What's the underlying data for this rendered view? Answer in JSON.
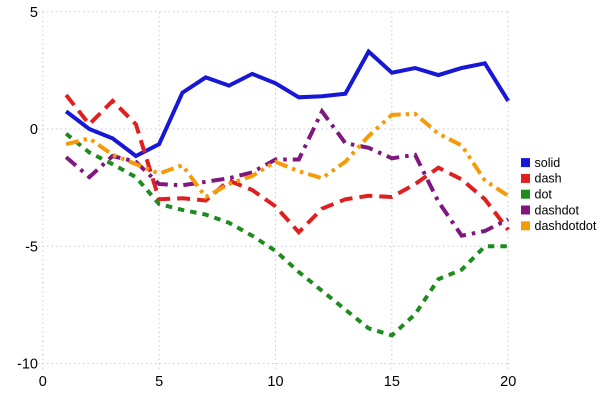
{
  "chart_data": {
    "type": "line",
    "title": "",
    "xlabel": "",
    "ylabel": "",
    "xlim": [
      0,
      20
    ],
    "ylim": [
      -10,
      5
    ],
    "xticks": [
      "0",
      "5",
      "10",
      "15",
      "20"
    ],
    "xtick_values": [
      0,
      5,
      10,
      15,
      20
    ],
    "yticks": [
      "5",
      "0",
      "-5",
      "-10"
    ],
    "ytick_values": [
      5,
      0,
      -5,
      -10
    ],
    "grid": "dotted",
    "legend_position": "right",
    "x": [
      1,
      2,
      3,
      4,
      5,
      6,
      7,
      8,
      9,
      10,
      11,
      12,
      13,
      14,
      15,
      16,
      17,
      18,
      19,
      20
    ],
    "series": [
      {
        "name": "solid",
        "style": "solid",
        "color": "#1717d6",
        "values": [
          0.75,
          0.0,
          -0.4,
          -1.15,
          -0.65,
          1.55,
          2.2,
          1.85,
          2.35,
          1.95,
          1.35,
          1.4,
          1.5,
          3.3,
          2.4,
          2.6,
          2.3,
          2.6,
          2.8,
          1.2
        ]
      },
      {
        "name": "dash",
        "style": "dash",
        "color": "#df2020",
        "values": [
          1.45,
          0.2,
          1.2,
          0.2,
          -3.0,
          -2.95,
          -3.05,
          -2.2,
          -2.6,
          -3.3,
          -4.4,
          -3.4,
          -3.0,
          -2.85,
          -2.9,
          -2.35,
          -1.65,
          -2.15,
          -3.0,
          -4.3
        ]
      },
      {
        "name": "dot",
        "style": "dot",
        "color": "#1e8b1e",
        "values": [
          -0.2,
          -1.0,
          -1.5,
          -2.05,
          -3.2,
          -3.45,
          -3.65,
          -4.0,
          -4.55,
          -5.2,
          -6.1,
          -6.9,
          -7.7,
          -8.5,
          -8.8,
          -7.9,
          -6.4,
          -6.0,
          -5.0,
          -5.0
        ]
      },
      {
        "name": "dashdot",
        "style": "dashdot",
        "color": "#7f177f",
        "values": [
          -1.2,
          -2.05,
          -1.15,
          -1.4,
          -2.35,
          -2.4,
          -2.25,
          -2.1,
          -1.85,
          -1.3,
          -1.3,
          0.75,
          -0.6,
          -0.8,
          -1.25,
          -1.1,
          -3.1,
          -4.55,
          -4.35,
          -3.85
        ]
      },
      {
        "name": "dashdotdot",
        "style": "dashdotdot",
        "color": "#f59b0a",
        "values": [
          -0.65,
          -0.4,
          -1.1,
          -1.5,
          -1.9,
          -1.55,
          -2.9,
          -2.35,
          -2.0,
          -1.4,
          -1.8,
          -2.1,
          -1.4,
          -0.3,
          0.6,
          0.65,
          -0.2,
          -0.7,
          -2.2,
          -2.85
        ]
      }
    ],
    "legend": {
      "items": [
        "solid",
        "dash",
        "dot",
        "dashdot",
        "dashdotdot"
      ]
    },
    "colors": {
      "background": "#ffffff",
      "grid": "#c9c9dc",
      "text": "#000000"
    }
  }
}
